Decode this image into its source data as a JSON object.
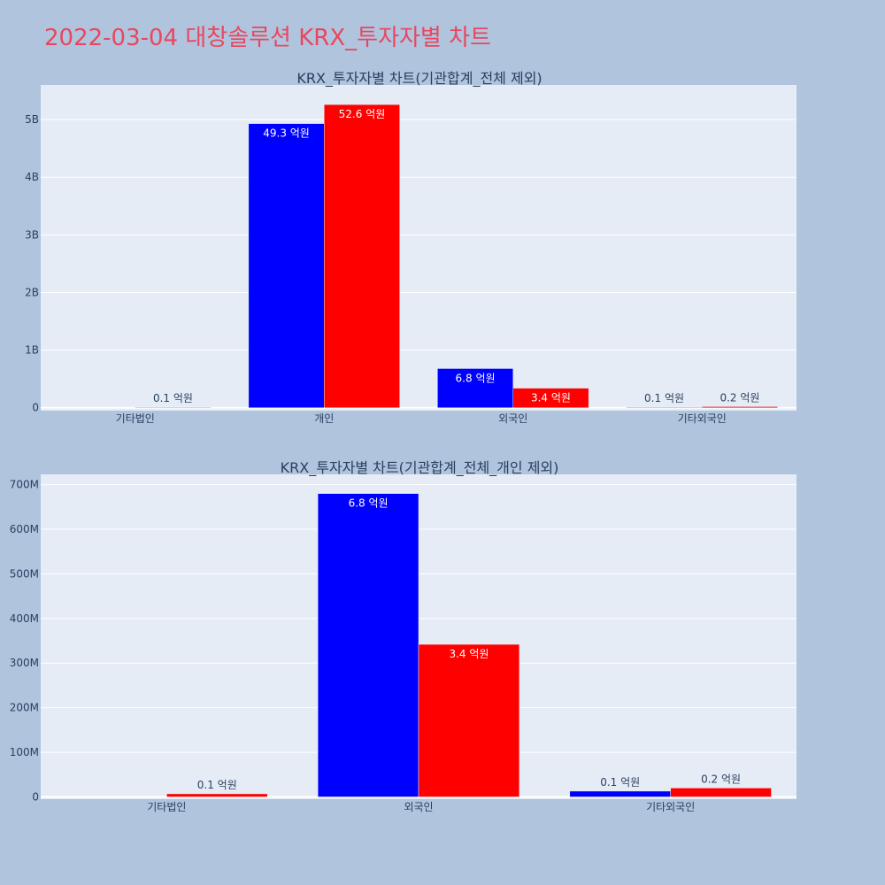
{
  "page": {
    "title": "2022-03-04 대창솔루션 KRX_투자자별 차트"
  },
  "colors": {
    "background": "#b0c4de",
    "plot_bg": "#e5ecf6",
    "grid": "#ffffff",
    "title": "#e8475f",
    "text": "#2a3f5f"
  },
  "chart_data": [
    {
      "type": "bar",
      "title": "KRX_투자자별 차트(기관합계_전체 제외)",
      "categories": [
        "기타법인",
        "개인",
        "외국인",
        "기타외국인"
      ],
      "series": [
        {
          "color": "#0000ff",
          "values": [
            0,
            4930000000,
            680000000,
            10000000
          ],
          "labels": [
            "",
            "49.3 억원",
            "6.8 억원",
            "0.1 억원"
          ]
        },
        {
          "color": "#ff0000",
          "values": [
            10000000,
            5260000000,
            340000000,
            20000000
          ],
          "labels": [
            "0.1 억원",
            "52.6 억원",
            "3.4 억원",
            "0.2 억원"
          ]
        }
      ],
      "yticks": [
        0,
        1000000000,
        2000000000,
        3000000000,
        4000000000,
        5000000000
      ],
      "ytick_labels": [
        "0",
        "1B",
        "2B",
        "3B",
        "4B",
        "5B"
      ],
      "ylim": [
        -50000000,
        5600000000
      ],
      "grid": true
    },
    {
      "type": "bar",
      "title": "KRX_투자자별 차트(기관합계_전체_개인 제외)",
      "categories": [
        "기타법인",
        "외국인",
        "기타외국인"
      ],
      "series": [
        {
          "color": "#0000ff",
          "values": [
            0,
            680000000,
            13000000
          ],
          "labels": [
            "",
            "6.8 억원",
            "0.1 억원"
          ]
        },
        {
          "color": "#ff0000",
          "values": [
            7000000,
            342000000,
            20000000
          ],
          "labels": [
            "0.1 억원",
            "3.4 억원",
            "0.2 억원"
          ]
        }
      ],
      "yticks": [
        0,
        100000000,
        200000000,
        300000000,
        400000000,
        500000000,
        600000000,
        700000000
      ],
      "ytick_labels": [
        "0",
        "100M",
        "200M",
        "300M",
        "400M",
        "500M",
        "600M",
        "700M"
      ],
      "ylim": [
        -5000000,
        723000000
      ],
      "grid": true
    }
  ]
}
